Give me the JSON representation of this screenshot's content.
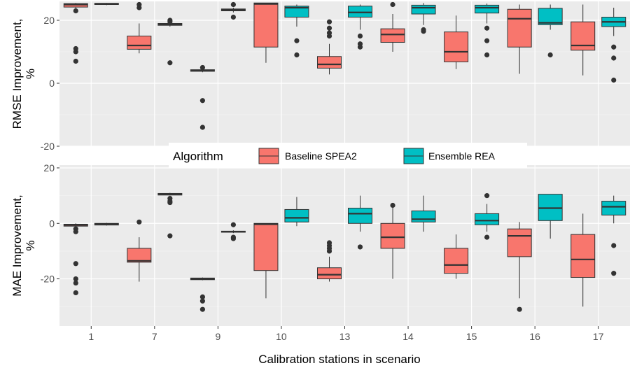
{
  "chart_data": {
    "type": "boxplot",
    "xlabel": "Calibration stations in scenario",
    "categories": [
      "1",
      "7",
      "9",
      "10",
      "13",
      "14",
      "15",
      "16",
      "17"
    ],
    "legend": {
      "title": "Algorithm",
      "entries": [
        {
          "name": "Baseline SPEA2",
          "color": "#F8766D"
        },
        {
          "name": "Ensemble REA",
          "color": "#00BFC4"
        }
      ]
    },
    "panels": [
      {
        "ylabel": "RMSE Improvement,\n%",
        "ylim": [
          -20,
          26
        ],
        "yticks": [
          -20,
          0,
          20
        ],
        "series": [
          {
            "name": "Baseline SPEA2",
            "boxes": [
              {
                "q1": 24.2,
                "median": 25.0,
                "q3": 25.3,
                "lo": 23.5,
                "hi": 25.5,
                "outliers": [
                  23,
                  11,
                  10,
                  7
                ]
              },
              {
                "q1": 10.8,
                "median": 12.0,
                "q3": 15.0,
                "lo": 9.5,
                "hi": 19.0,
                "outliers": [
                  24,
                  25
                ]
              },
              {
                "q1": 3.8,
                "median": 4.0,
                "q3": 4.3,
                "lo": 3.5,
                "hi": 4.5,
                "outliers": [
                  5,
                  -5.5,
                  -14
                ]
              },
              {
                "q1": 11.5,
                "median": 25.2,
                "q3": 25.5,
                "lo": 6.5,
                "hi": 25.5,
                "outliers": []
              },
              {
                "q1": 4.8,
                "median": 6.0,
                "q3": 8.5,
                "lo": 2.8,
                "hi": 12.5,
                "outliers": [
                  15,
                  16,
                  17.5,
                  19.5
                ]
              },
              {
                "q1": 13.0,
                "median": 15.5,
                "q3": 17.3,
                "lo": 10.0,
                "hi": 22.0,
                "outliers": [
                  25
                ]
              },
              {
                "q1": 6.8,
                "median": 10.0,
                "q3": 16.3,
                "lo": 4.5,
                "hi": 21.5,
                "outliers": []
              },
              {
                "q1": 11.5,
                "median": 20.5,
                "q3": 23.5,
                "lo": 3.0,
                "hi": 25.0,
                "outliers": []
              },
              {
                "q1": 10.5,
                "median": 12.0,
                "q3": 19.5,
                "lo": 2.5,
                "hi": 25.0,
                "outliers": []
              }
            ]
          },
          {
            "name": "Ensemble REA",
            "boxes": [
              {
                "q1": 25.0,
                "median": 25.2,
                "q3": 25.4,
                "lo": 24.8,
                "hi": 25.5,
                "outliers": []
              },
              {
                "q1": 18.4,
                "median": 18.7,
                "q3": 19.0,
                "lo": 18.0,
                "hi": 19.5,
                "outliers": [
                  20,
                  19.5,
                  6.5
                ]
              },
              {
                "q1": 23.0,
                "median": 23.3,
                "q3": 23.6,
                "lo": 22.5,
                "hi": 24.0,
                "outliers": [
                  21,
                  25
                ]
              },
              {
                "q1": 21.0,
                "median": 24.0,
                "q3": 24.5,
                "lo": 18.0,
                "hi": 25.0,
                "outliers": [
                  13.5,
                  9
                ]
              },
              {
                "q1": 21.0,
                "median": 22.5,
                "q3": 24.5,
                "lo": 17.0,
                "hi": 25.0,
                "outliers": [
                  15,
                  12.5,
                  11.5
                ]
              },
              {
                "q1": 22.0,
                "median": 24.0,
                "q3": 24.8,
                "lo": 18.5,
                "hi": 25.5,
                "outliers": [
                  17,
                  16.5
                ]
              },
              {
                "q1": 22.3,
                "median": 24.0,
                "q3": 24.8,
                "lo": 19.0,
                "hi": 25.3,
                "outliers": [
                  17.5,
                  13.5,
                  9
                ]
              },
              {
                "q1": 18.6,
                "median": 19.2,
                "q3": 23.8,
                "lo": 17.0,
                "hi": 25.0,
                "outliers": [
                  9
                ]
              },
              {
                "q1": 18.0,
                "median": 19.5,
                "q3": 21.0,
                "lo": 15.0,
                "hi": 24.0,
                "outliers": [
                  11.5,
                  8,
                  1
                ]
              }
            ]
          }
        ]
      },
      {
        "ylabel": "MAE Improvement,\n%",
        "ylim": [
          -37,
          21
        ],
        "yticks": [
          -20,
          0,
          20
        ],
        "series": [
          {
            "name": "Baseline SPEA2",
            "boxes": [
              {
                "q1": -1.0,
                "median": -0.6,
                "q3": -0.3,
                "lo": -1.5,
                "hi": 0.0,
                "outliers": [
                  -2,
                  -3,
                  -14.5,
                  -20,
                  -21.5,
                  -25
                ]
              },
              {
                "q1": -14.0,
                "median": -13.5,
                "q3": -9.0,
                "lo": -21.0,
                "hi": -5.0,
                "outliers": [
                  0.5
                ]
              },
              {
                "q1": -20.3,
                "median": -20.0,
                "q3": -19.7,
                "lo": -20.5,
                "hi": -19.5,
                "outliers": [
                  -26.5,
                  -28,
                  -31
                ]
              },
              {
                "q1": -17.0,
                "median": -0.3,
                "q3": 0.0,
                "lo": -27.0,
                "hi": 0.0,
                "outliers": []
              },
              {
                "q1": -20.0,
                "median": -18.5,
                "q3": -16.0,
                "lo": -21.0,
                "hi": -12.0,
                "outliers": [
                  -7,
                  -8,
                  -9,
                  -10
                ]
              },
              {
                "q1": -9.0,
                "median": -5.0,
                "q3": 0.0,
                "lo": -20.0,
                "hi": 6.0,
                "outliers": [
                  6.5
                ]
              },
              {
                "q1": -18.0,
                "median": -15.0,
                "q3": -9.0,
                "lo": -20.0,
                "hi": -4.0,
                "outliers": []
              },
              {
                "q1": -12.0,
                "median": -4.5,
                "q3": -2.0,
                "lo": -27.0,
                "hi": 0.5,
                "outliers": [
                  -31
                ]
              },
              {
                "q1": -19.5,
                "median": -13.0,
                "q3": -4.0,
                "lo": -30.0,
                "hi": 3.5,
                "outliers": []
              }
            ]
          },
          {
            "name": "Ensemble REA",
            "boxes": [
              {
                "q1": -0.6,
                "median": -0.3,
                "q3": 0.0,
                "lo": -0.8,
                "hi": 0.2,
                "outliers": []
              },
              {
                "q1": 10.2,
                "median": 10.5,
                "q3": 10.8,
                "lo": 10.0,
                "hi": 11.0,
                "outliers": [
                  9,
                  8,
                  7.5,
                  -4.5
                ]
              },
              {
                "q1": -3.2,
                "median": -3.0,
                "q3": -2.8,
                "lo": -3.5,
                "hi": -2.5,
                "outliers": [
                  -0.5,
                  -5,
                  -5.5
                ]
              },
              {
                "q1": 0.5,
                "median": 2.0,
                "q3": 5.0,
                "lo": -1.0,
                "hi": 9.5,
                "outliers": []
              },
              {
                "q1": 0.0,
                "median": 3.5,
                "q3": 5.5,
                "lo": -3.0,
                "hi": 10.0,
                "outliers": [
                  -8.5
                ]
              },
              {
                "q1": 0.5,
                "median": 1.5,
                "q3": 4.5,
                "lo": -3.0,
                "hi": 10.0,
                "outliers": []
              },
              {
                "q1": -0.5,
                "median": 1.0,
                "q3": 3.5,
                "lo": -3.0,
                "hi": 7.0,
                "outliers": [
                  10,
                  -5
                ]
              },
              {
                "q1": 1.0,
                "median": 5.5,
                "q3": 10.5,
                "lo": -5.5,
                "hi": 10.5,
                "outliers": []
              },
              {
                "q1": 3.0,
                "median": 6.0,
                "q3": 8.0,
                "lo": 0.0,
                "hi": 10.0,
                "outliers": [
                  -8,
                  -18
                ]
              }
            ]
          }
        ]
      }
    ]
  }
}
